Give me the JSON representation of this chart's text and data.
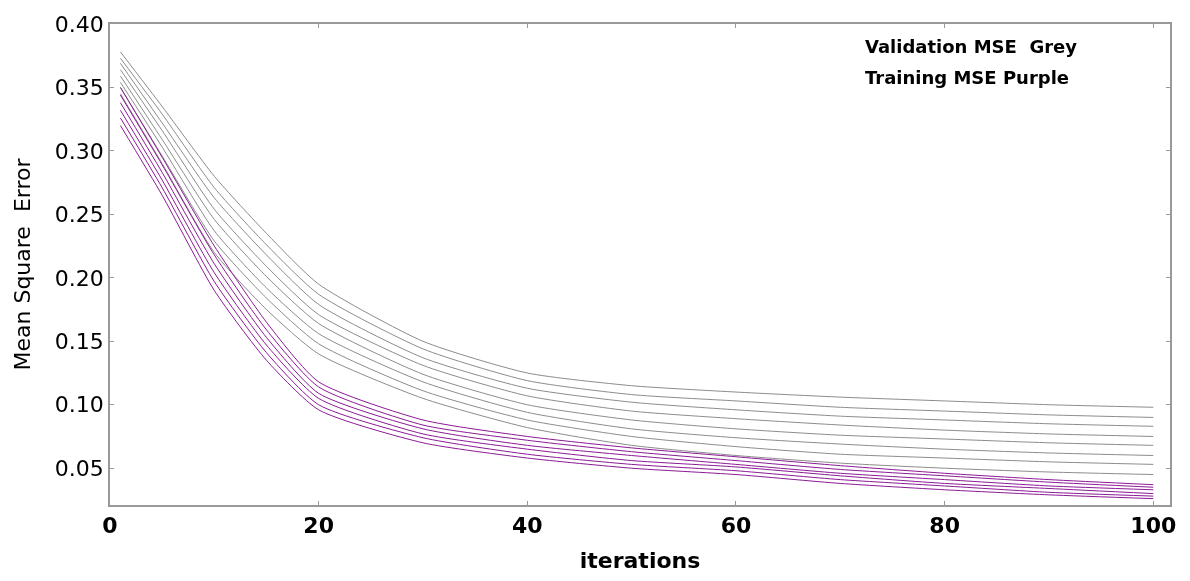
{
  "chart_data": {
    "type": "line",
    "xlabel": "iterations",
    "ylabel": "Mean Square  Error",
    "annotations": [
      "Validation MSE  Grey",
      "Training MSE Purple"
    ],
    "x": [
      1,
      5,
      10,
      15,
      20,
      30,
      40,
      50,
      60,
      70,
      80,
      90,
      100
    ],
    "xlim": [
      0,
      101.6
    ],
    "xticks": [
      0,
      20,
      40,
      60,
      80,
      100
    ],
    "ylim": [
      0.021,
      0.4
    ],
    "yticks": [
      {
        "value": 0.05,
        "label": "0.05"
      },
      {
        "value": 0.1,
        "label": "0.10"
      },
      {
        "value": 0.15,
        "label": "0.15"
      },
      {
        "value": 0.2,
        "label": "0.20"
      },
      {
        "value": 0.25,
        "label": "0.25"
      },
      {
        "value": 0.3,
        "label": "0.30"
      },
      {
        "value": 0.35,
        "label": "0.35"
      },
      {
        "value": 0.4,
        "label": "0.40"
      }
    ],
    "marker": "none",
    "line_style": "solid",
    "series": [
      {
        "color": "#8c8c8c",
        "values": [
          0.345,
          0.29,
          0.22,
          0.175,
          0.14,
          0.105,
          0.082,
          0.068,
          0.06,
          0.054,
          0.05,
          0.047,
          0.045
        ]
      },
      {
        "color": "#8c8c8c",
        "values": [
          0.35,
          0.296,
          0.229,
          0.184,
          0.148,
          0.111,
          0.088,
          0.075,
          0.067,
          0.061,
          0.058,
          0.055,
          0.053
        ]
      },
      {
        "color": "#8c8c8c",
        "values": [
          0.354,
          0.303,
          0.237,
          0.192,
          0.156,
          0.118,
          0.094,
          0.081,
          0.074,
          0.069,
          0.065,
          0.062,
          0.06
        ]
      },
      {
        "color": "#8c8c8c",
        "values": [
          0.359,
          0.309,
          0.246,
          0.201,
          0.164,
          0.124,
          0.1,
          0.088,
          0.081,
          0.076,
          0.073,
          0.07,
          0.068
        ]
      },
      {
        "color": "#8c8c8c",
        "values": [
          0.364,
          0.316,
          0.254,
          0.209,
          0.171,
          0.131,
          0.107,
          0.095,
          0.089,
          0.084,
          0.08,
          0.077,
          0.075
        ]
      },
      {
        "color": "#8c8c8c",
        "values": [
          0.369,
          0.322,
          0.263,
          0.218,
          0.179,
          0.137,
          0.113,
          0.102,
          0.096,
          0.091,
          0.088,
          0.085,
          0.083
        ]
      },
      {
        "color": "#8c8c8c",
        "values": [
          0.373,
          0.329,
          0.271,
          0.226,
          0.187,
          0.144,
          0.119,
          0.108,
          0.103,
          0.098,
          0.095,
          0.092,
          0.09
        ]
      },
      {
        "color": "#8c8c8c",
        "values": [
          0.378,
          0.335,
          0.28,
          0.235,
          0.195,
          0.15,
          0.125,
          0.115,
          0.11,
          0.106,
          0.103,
          0.1,
          0.098
        ]
      },
      {
        "color": "#8b1a96",
        "values": [
          0.32,
          0.265,
          0.19,
          0.135,
          0.096,
          0.07,
          0.058,
          0.05,
          0.045,
          0.038,
          0.033,
          0.029,
          0.026
        ]
      },
      {
        "color": "#8b1a96",
        "values": [
          0.326,
          0.271,
          0.197,
          0.141,
          0.1,
          0.074,
          0.061,
          0.053,
          0.048,
          0.041,
          0.036,
          0.031,
          0.028
        ]
      },
      {
        "color": "#8b1a96",
        "values": [
          0.332,
          0.277,
          0.204,
          0.147,
          0.105,
          0.077,
          0.065,
          0.056,
          0.051,
          0.044,
          0.038,
          0.034,
          0.03
        ]
      },
      {
        "color": "#8b1a96",
        "values": [
          0.338,
          0.283,
          0.211,
          0.153,
          0.109,
          0.081,
          0.068,
          0.06,
          0.053,
          0.046,
          0.041,
          0.036,
          0.033
        ]
      },
      {
        "color": "#8b1a96",
        "values": [
          0.344,
          0.289,
          0.218,
          0.159,
          0.114,
          0.084,
          0.072,
          0.063,
          0.056,
          0.049,
          0.044,
          0.039,
          0.035
        ]
      },
      {
        "color": "#8b1a96",
        "values": [
          0.35,
          0.295,
          0.225,
          0.165,
          0.118,
          0.088,
          0.075,
          0.066,
          0.059,
          0.052,
          0.046,
          0.041,
          0.037
        ]
      }
    ]
  }
}
